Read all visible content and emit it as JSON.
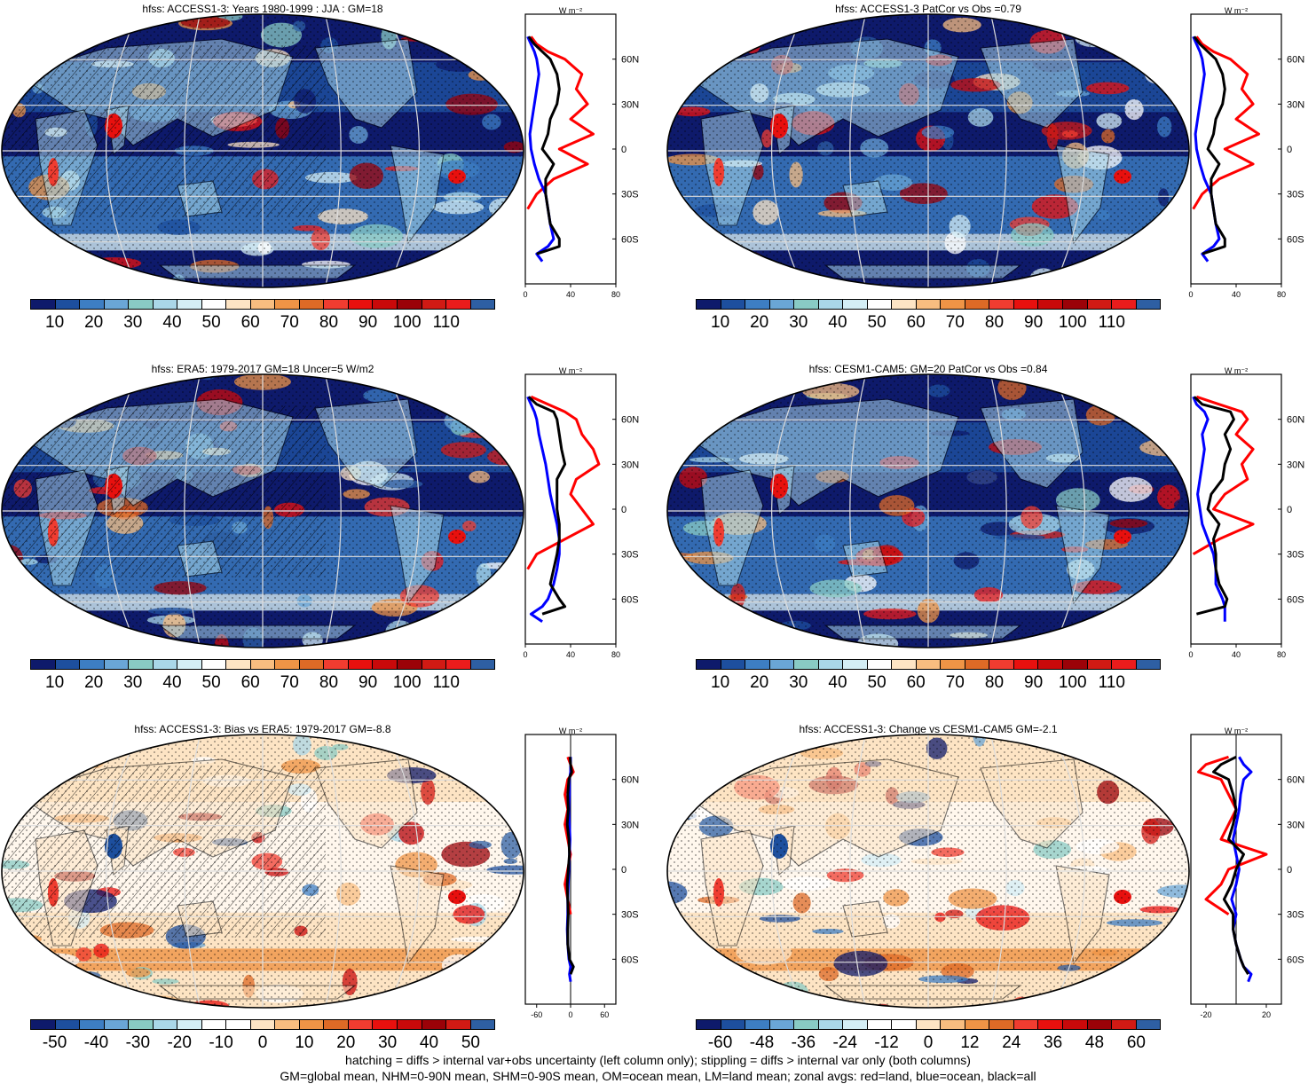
{
  "footer": {
    "line1": "hatching = diffs > internal var+obs uncertainty (left column only); stippling = diffs > internal var only (both columns)",
    "line2": "GM=global mean, NHM=0-90N mean, SHM=0-90S mean, OM=ocean mean, LM=land mean; zonal avgs: red=land, blue=ocean, black=all"
  },
  "zonal_units": "W m⁻²",
  "lat_ticks": [
    "60N",
    "30N",
    "0",
    "30S",
    "60S"
  ],
  "colors": {
    "abs_scale": [
      "#0e1a6b",
      "#1d4f9e",
      "#3d7ec3",
      "#6aa6d6",
      "#89cbc4",
      "#aad7e8",
      "#d4eef5",
      "#ffffff",
      "#fde4c4",
      "#f8bd80",
      "#ef9446",
      "#de6a26",
      "#f03c30",
      "#e8100e",
      "#c9090a",
      "#9b0208",
      "#d11a14",
      "#ea1c1c",
      "#2e5fa3"
    ],
    "diff_scale": [
      "#0e1a6b",
      "#1d4f9e",
      "#3d7ec3",
      "#6aa6d6",
      "#89cbc4",
      "#aad7e8",
      "#d4eef5",
      "#ffffff",
      "#ffffff",
      "#fde4c4",
      "#f8bd80",
      "#ef9446",
      "#de6a26",
      "#f03c30",
      "#e8100e",
      "#c9090a",
      "#9b0208",
      "#d11a14",
      "#2e5fa3"
    ],
    "land_line": "#ff0000",
    "ocean_line": "#0000ff",
    "all_line": "#000000"
  },
  "panels": [
    {
      "id": "p1",
      "title": "hfss: ACCESS1-3: Years 1980-1999 : JJA : GM=18",
      "cbar_labels": [
        "10",
        "20",
        "30",
        "40",
        "50",
        "60",
        "70",
        "80",
        "90",
        "100",
        "110"
      ],
      "zonal_xticks": [
        "0",
        "40",
        "80"
      ],
      "zonal_xrange": [
        0,
        80
      ],
      "scale": "abs",
      "hatch": true,
      "chart_data": {
        "type": "line",
        "x_label": "W m⁻²",
        "lat": [
          75,
          70,
          65,
          60,
          50,
          40,
          30,
          20,
          10,
          0,
          -10,
          -20,
          -30,
          -40,
          -50,
          -60,
          -65,
          -70,
          -75
        ],
        "land": [
          5,
          10,
          20,
          35,
          50,
          45,
          55,
          40,
          60,
          30,
          55,
          25,
          10,
          2,
          null,
          null,
          25,
          null,
          null
        ],
        "ocean": [
          2,
          5,
          8,
          10,
          12,
          10,
          8,
          6,
          4,
          5,
          8,
          12,
          18,
          20,
          22,
          25,
          20,
          10,
          15
        ],
        "all": [
          3,
          8,
          15,
          22,
          28,
          30,
          28,
          22,
          20,
          15,
          25,
          18,
          18,
          20,
          22,
          30,
          30,
          10,
          null
        ]
      }
    },
    {
      "id": "p2",
      "title": "hfss: ACCESS1-3 PatCor vs Obs =0.79",
      "cbar_labels": [
        "10",
        "20",
        "30",
        "40",
        "50",
        "60",
        "70",
        "80",
        "90",
        "100",
        "110"
      ],
      "zonal_xticks": [
        "0",
        "40",
        "80"
      ],
      "zonal_xrange": [
        0,
        80
      ],
      "scale": "abs",
      "hatch": false,
      "chart_data": {
        "type": "line",
        "x_label": "W m⁻²",
        "lat": [
          75,
          70,
          65,
          60,
          50,
          40,
          30,
          20,
          10,
          0,
          -10,
          -20,
          -30,
          -40,
          -50,
          -60,
          -65,
          -70,
          -75
        ],
        "land": [
          5,
          10,
          20,
          35,
          50,
          45,
          55,
          40,
          60,
          30,
          55,
          25,
          10,
          2,
          null,
          null,
          25,
          null,
          null
        ],
        "ocean": [
          2,
          5,
          8,
          10,
          12,
          10,
          8,
          6,
          4,
          5,
          8,
          12,
          18,
          20,
          22,
          25,
          20,
          10,
          15
        ],
        "all": [
          3,
          8,
          15,
          22,
          28,
          30,
          28,
          22,
          20,
          15,
          25,
          18,
          18,
          20,
          22,
          30,
          30,
          10,
          null
        ]
      }
    },
    {
      "id": "p3",
      "title": "hfss: ERA5: 1979-2017 GM=18 Uncer=5 W/m2",
      "cbar_labels": [
        "10",
        "20",
        "30",
        "40",
        "50",
        "60",
        "70",
        "80",
        "90",
        "100",
        "110"
      ],
      "zonal_xticks": [
        "0",
        "40",
        "80"
      ],
      "zonal_xrange": [
        0,
        80
      ],
      "scale": "abs",
      "hatch": true,
      "chart_data": {
        "type": "line",
        "x_label": "W m⁻²",
        "lat": [
          75,
          70,
          65,
          60,
          50,
          40,
          30,
          20,
          10,
          0,
          -10,
          -20,
          -30,
          -40,
          -50,
          -60,
          -65,
          -70,
          -75
        ],
        "land": [
          5,
          20,
          35,
          45,
          50,
          60,
          65,
          45,
          40,
          50,
          60,
          35,
          10,
          2,
          null,
          null,
          10,
          null,
          null
        ],
        "ocean": [
          2,
          5,
          8,
          10,
          12,
          15,
          18,
          20,
          22,
          25,
          28,
          30,
          30,
          28,
          25,
          20,
          15,
          5,
          15
        ],
        "all": [
          3,
          10,
          25,
          28,
          30,
          32,
          35,
          28,
          28,
          28,
          30,
          30,
          28,
          25,
          22,
          30,
          35,
          15,
          null
        ]
      }
    },
    {
      "id": "p4",
      "title": "hfss: CESM1-CAM5: GM=20 PatCor vs Obs =0.84",
      "cbar_labels": [
        "10",
        "20",
        "30",
        "40",
        "50",
        "60",
        "70",
        "80",
        "90",
        "100",
        "110"
      ],
      "zonal_xticks": [
        "0",
        "40",
        "80"
      ],
      "zonal_xrange": [
        0,
        80
      ],
      "scale": "abs",
      "hatch": false,
      "chart_data": {
        "type": "line",
        "x_label": "W m⁻²",
        "lat": [
          75,
          70,
          65,
          60,
          50,
          40,
          30,
          20,
          10,
          0,
          -10,
          -20,
          -30,
          -40,
          -50,
          -60,
          -65,
          -70,
          -75
        ],
        "land": [
          5,
          25,
          45,
          50,
          40,
          55,
          45,
          50,
          30,
          20,
          55,
          25,
          2,
          null,
          null,
          null,
          null,
          null,
          null
        ],
        "ocean": [
          2,
          5,
          12,
          15,
          10,
          12,
          10,
          8,
          6,
          8,
          10,
          15,
          20,
          22,
          22,
          28,
          30,
          30,
          30
        ],
        "all": [
          3,
          10,
          35,
          38,
          30,
          35,
          30,
          28,
          18,
          15,
          25,
          20,
          22,
          22,
          25,
          32,
          30,
          5,
          null
        ]
      }
    },
    {
      "id": "p5",
      "title": "hfss: ACCESS1-3: Bias vs ERA5: 1979-2017 GM=-8.8",
      "cbar_labels": [
        "-50",
        "-40",
        "-30",
        "-20",
        "-10",
        "0",
        "10",
        "20",
        "30",
        "40",
        "50"
      ],
      "zonal_xticks": [
        "-60",
        "0",
        "60"
      ],
      "zonal_xrange": [
        -80,
        80
      ],
      "scale": "diff",
      "hatch": true,
      "chart_data": {
        "type": "line",
        "x_label": "W m⁻²",
        "lat": [
          75,
          70,
          65,
          60,
          50,
          40,
          30,
          20,
          10,
          0,
          -10,
          -20,
          -30,
          -40,
          -50,
          -60,
          -65,
          -70,
          -75
        ],
        "land": [
          -5,
          0,
          5,
          -5,
          -10,
          -5,
          -10,
          -5,
          0,
          -5,
          -10,
          -5,
          0,
          null,
          null,
          null,
          30,
          null,
          null
        ],
        "ocean": [
          0,
          0,
          0,
          -2,
          -2,
          -3,
          -2,
          -1,
          -2,
          -3,
          -4,
          -5,
          -5,
          -6,
          -5,
          -3,
          0,
          -2,
          0
        ],
        "all": [
          -1,
          0,
          2,
          -3,
          -5,
          -4,
          -6,
          -3,
          -2,
          -4,
          -6,
          -5,
          -4,
          -5,
          -5,
          -2,
          5,
          0,
          null
        ]
      }
    },
    {
      "id": "p6",
      "title": "hfss: ACCESS1-3: Change vs CESM1-CAM5 GM=-2.1",
      "cbar_labels": [
        "-60",
        "-48",
        "-36",
        "-24",
        "-12",
        "0",
        "12",
        "24",
        "36",
        "48",
        "60"
      ],
      "zonal_xticks": [
        "-20",
        "20"
      ],
      "zonal_xrange": [
        -30,
        30
      ],
      "scale": "diff",
      "hatch": false,
      "chart_data": {
        "type": "line",
        "x_label": "W m⁻²",
        "lat": [
          75,
          70,
          65,
          60,
          50,
          40,
          30,
          20,
          10,
          0,
          -10,
          -20,
          -30,
          -40,
          -50,
          -60,
          -65,
          -70,
          -75
        ],
        "land": [
          -5,
          -20,
          -25,
          -10,
          -5,
          0,
          -5,
          -10,
          20,
          -5,
          -10,
          -20,
          -5,
          null,
          null,
          null,
          null,
          null,
          35
        ],
        "ocean": [
          2,
          5,
          10,
          5,
          3,
          2,
          0,
          -2,
          0,
          2,
          0,
          -3,
          0,
          -2,
          0,
          3,
          5,
          10,
          8
        ],
        "all": [
          0,
          -10,
          -15,
          -5,
          -2,
          0,
          -2,
          -5,
          5,
          0,
          -3,
          -8,
          -2,
          -2,
          0,
          3,
          5,
          8,
          null
        ]
      }
    }
  ]
}
